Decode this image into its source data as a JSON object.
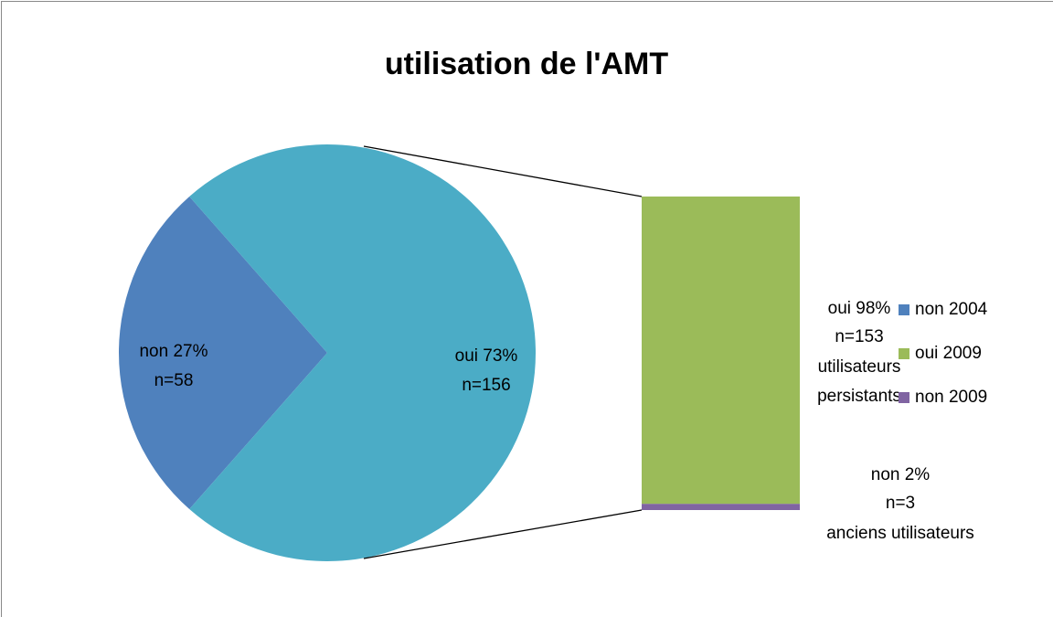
{
  "chart_data": {
    "type": "bar-of-pie",
    "title": "utilisation de l'AMT",
    "pie": {
      "values": [
        27,
        73
      ],
      "value_labels": [
        "non 27%",
        "oui 73%"
      ],
      "counts": [
        58,
        156
      ],
      "count_labels": [
        "n=58",
        "n=156"
      ],
      "colors": [
        "#4f81bd",
        "#4bacc6"
      ]
    },
    "bar": {
      "values": [
        98,
        2
      ],
      "value_labels": [
        "oui 98%",
        "non 2%"
      ],
      "counts": [
        153,
        3
      ],
      "count_labels": [
        "n=153",
        "n=3"
      ],
      "notes": [
        [
          "utilisateurs",
          "persistants"
        ],
        [
          "anciens utilisateurs"
        ]
      ],
      "colors": [
        "#9bbb59",
        "#8064a2"
      ]
    },
    "legend": {
      "names": [
        "non 2004",
        "oui 2009",
        "non 2009"
      ],
      "colors": [
        "#4f81bd",
        "#9bbb59",
        "#8064a2"
      ]
    }
  }
}
